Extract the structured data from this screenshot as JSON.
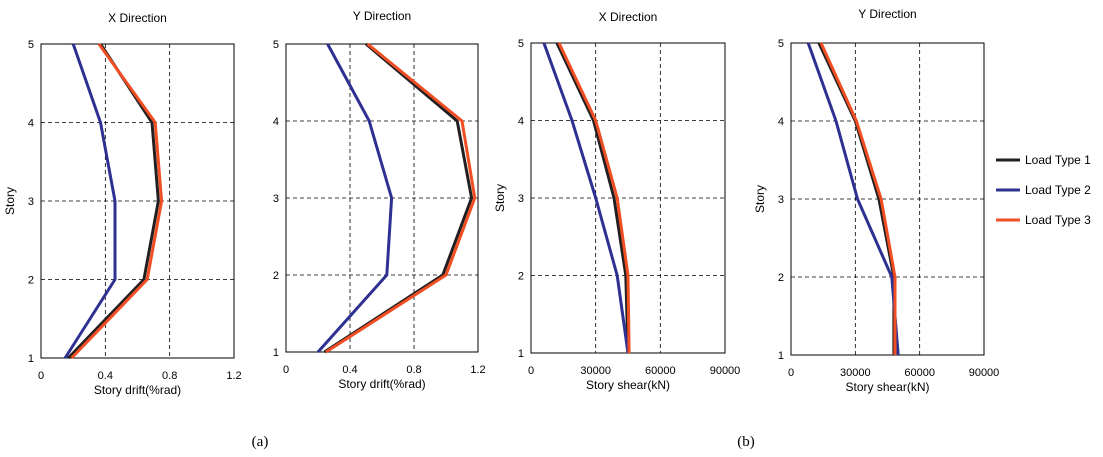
{
  "panel_labels": {
    "a": "(a)",
    "b": "(b)"
  },
  "legend": [
    {
      "label": "Load Type 1",
      "color": "#231f20"
    },
    {
      "label": "Load Type 2",
      "color": "#2e3192"
    },
    {
      "label": "Load Type 3",
      "color": "#f04e23"
    }
  ],
  "chart_data": [
    {
      "type": "line",
      "title": "X Direction",
      "xlabel": "Story drift(%rad)",
      "ylabel": "Story",
      "xlim": [
        0,
        1.2
      ],
      "ylim": [
        1,
        5
      ],
      "xticks": [
        "0",
        "0.4",
        "0.8",
        "1.2"
      ],
      "yticks": [
        "1",
        "2",
        "3",
        "4",
        "5"
      ],
      "grid": true,
      "y": [
        1,
        2,
        3,
        4,
        5
      ],
      "series": [
        {
          "name": "Load Type 1",
          "x": [
            0.17,
            0.64,
            0.73,
            0.69,
            0.37
          ]
        },
        {
          "name": "Load Type 2",
          "x": [
            0.15,
            0.46,
            0.46,
            0.37,
            0.2
          ]
        },
        {
          "name": "Load Type 3",
          "x": [
            0.19,
            0.66,
            0.75,
            0.71,
            0.36
          ]
        }
      ]
    },
    {
      "type": "line",
      "title": "Y Direction",
      "xlabel": "Story drift(%rad)",
      "ylabel": "",
      "xlim": [
        0,
        1.2
      ],
      "ylim": [
        1,
        5
      ],
      "xticks": [
        "0",
        "0.4",
        "0.8",
        "1.2"
      ],
      "yticks": [
        "1",
        "2",
        "3",
        "4",
        "5"
      ],
      "grid": true,
      "y": [
        1,
        2,
        3,
        4,
        5
      ],
      "series": [
        {
          "name": "Load Type 1",
          "x": [
            0.24,
            0.98,
            1.16,
            1.07,
            0.5
          ]
        },
        {
          "name": "Load Type 2",
          "x": [
            0.2,
            0.63,
            0.66,
            0.52,
            0.26
          ]
        },
        {
          "name": "Load Type 3",
          "x": [
            0.25,
            1.0,
            1.18,
            1.1,
            0.51
          ]
        }
      ]
    },
    {
      "type": "line",
      "title": "X Direction",
      "xlabel": "Story shear(kN)",
      "ylabel": "Story",
      "xlim": [
        0,
        90000
      ],
      "ylim": [
        1,
        5
      ],
      "xticks": [
        "0",
        "30000",
        "60000",
        "90000"
      ],
      "yticks": [
        "1",
        "2",
        "3",
        "4",
        "5"
      ],
      "grid": true,
      "y": [
        1,
        2,
        3,
        4,
        5
      ],
      "series": [
        {
          "name": "Load Type 1",
          "x": [
            45000,
            44000,
            38500,
            29000,
            12000
          ]
        },
        {
          "name": "Load Type 2",
          "x": [
            45000,
            40000,
            30000,
            19000,
            6000
          ]
        },
        {
          "name": "Load Type 3",
          "x": [
            45500,
            45000,
            40000,
            30000,
            13000
          ]
        }
      ]
    },
    {
      "type": "line",
      "title": "Y Direction",
      "xlabel": "Story shear(kN)",
      "ylabel": "Story",
      "xlim": [
        0,
        90000
      ],
      "ylim": [
        1,
        5
      ],
      "xticks": [
        "0",
        "30000",
        "60000",
        "90000"
      ],
      "yticks": [
        "1",
        "2",
        "3",
        "4",
        "5"
      ],
      "grid": true,
      "y": [
        1,
        2,
        3,
        4,
        5
      ],
      "series": [
        {
          "name": "Load Type 1",
          "x": [
            48000,
            48000,
            41000,
            30000,
            13000
          ]
        },
        {
          "name": "Load Type 2",
          "x": [
            50000,
            47000,
            31000,
            21000,
            8000
          ]
        },
        {
          "name": "Load Type 3",
          "x": [
            48500,
            48500,
            42000,
            30500,
            14000
          ]
        }
      ]
    }
  ]
}
